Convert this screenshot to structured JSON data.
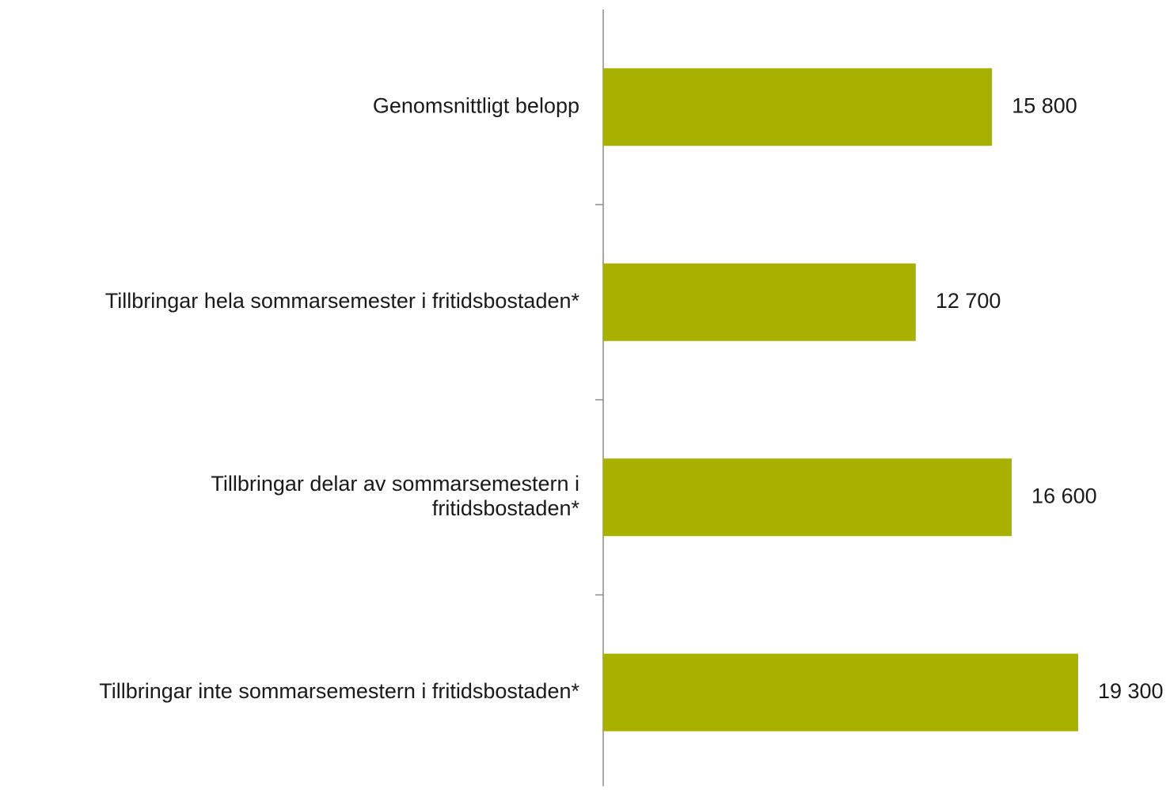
{
  "chart_data": {
    "type": "bar",
    "orientation": "horizontal",
    "categories": [
      "Genomsnittligt belopp",
      "Tillbringar hela sommarsemester i fritidsbostaden*",
      "Tillbringar delar av sommarsemestern i\nfritidsbostaden*",
      "Tillbringar inte sommarsemestern i fritidsbostaden*"
    ],
    "values": [
      15800,
      12700,
      16600,
      19300
    ],
    "value_labels": [
      "15 800",
      "12 700",
      "16 600",
      "19 300"
    ],
    "color": "#a8b000"
  }
}
